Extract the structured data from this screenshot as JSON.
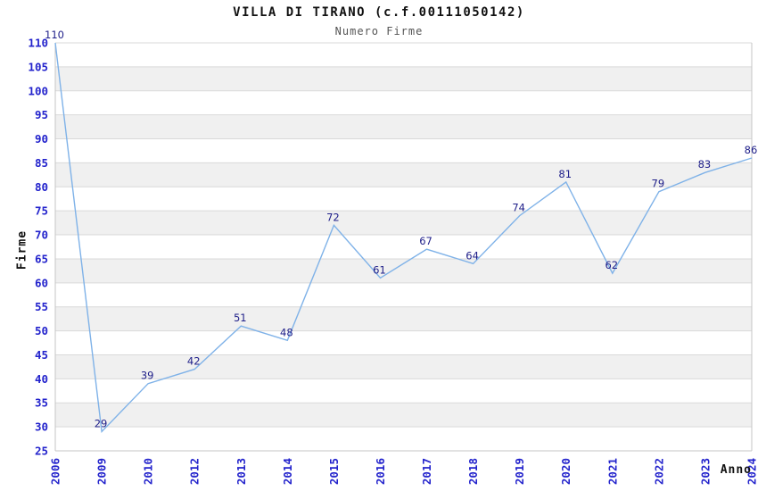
{
  "chart_data": {
    "type": "line",
    "title": "VILLA DI TIRANO (c.f.00111050142)",
    "subtitle": "Numero Firme",
    "xlabel": "Anno",
    "ylabel": "Firme",
    "categories": [
      "2006",
      "2009",
      "2010",
      "2012",
      "2013",
      "2014",
      "2015",
      "2016",
      "2017",
      "2018",
      "2019",
      "2020",
      "2021",
      "2022",
      "2023",
      "2024"
    ],
    "values": [
      110,
      29,
      39,
      42,
      51,
      48,
      72,
      61,
      67,
      64,
      74,
      81,
      62,
      79,
      83,
      86
    ],
    "ylim": [
      25,
      110
    ],
    "ytick_step": 5,
    "grid": true,
    "legend": "none",
    "band_color": "#f0f0f0",
    "grid_color": "#d9d9d9",
    "border_color": "#c6c6c6",
    "line_color": "#7fb2e8",
    "tick_label_color": "#2323cc",
    "point_label_color": "#20208a",
    "title_color": "#111111",
    "subtitle_color": "#555555"
  }
}
